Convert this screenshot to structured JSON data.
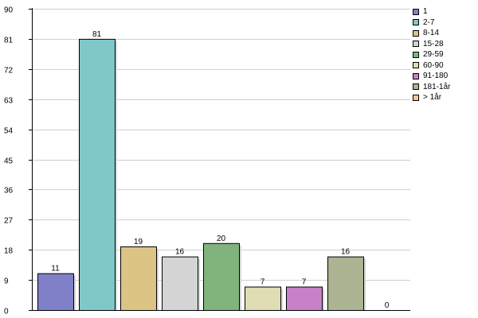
{
  "chart_data": {
    "type": "bar",
    "categories": [
      "1",
      "2-7",
      "8-14",
      "15-28",
      "29-59",
      "60-90",
      "91-180",
      "181-1år",
      "> 1år"
    ],
    "values": [
      11,
      81,
      19,
      16,
      20,
      7,
      7,
      16,
      0
    ],
    "colors": [
      "#8080c8",
      "#80c8c8",
      "#dcc484",
      "#d4d4d4",
      "#80b47c",
      "#e0dcb4",
      "#c880c8",
      "#acb494",
      "#f8c890"
    ],
    "yticks": [
      0,
      9,
      18,
      27,
      36,
      45,
      54,
      63,
      72,
      81,
      90
    ],
    "ylim": [
      0,
      90
    ],
    "grid": true,
    "legend_position": "top-right",
    "title": "",
    "xlabel": "",
    "ylabel": ""
  }
}
